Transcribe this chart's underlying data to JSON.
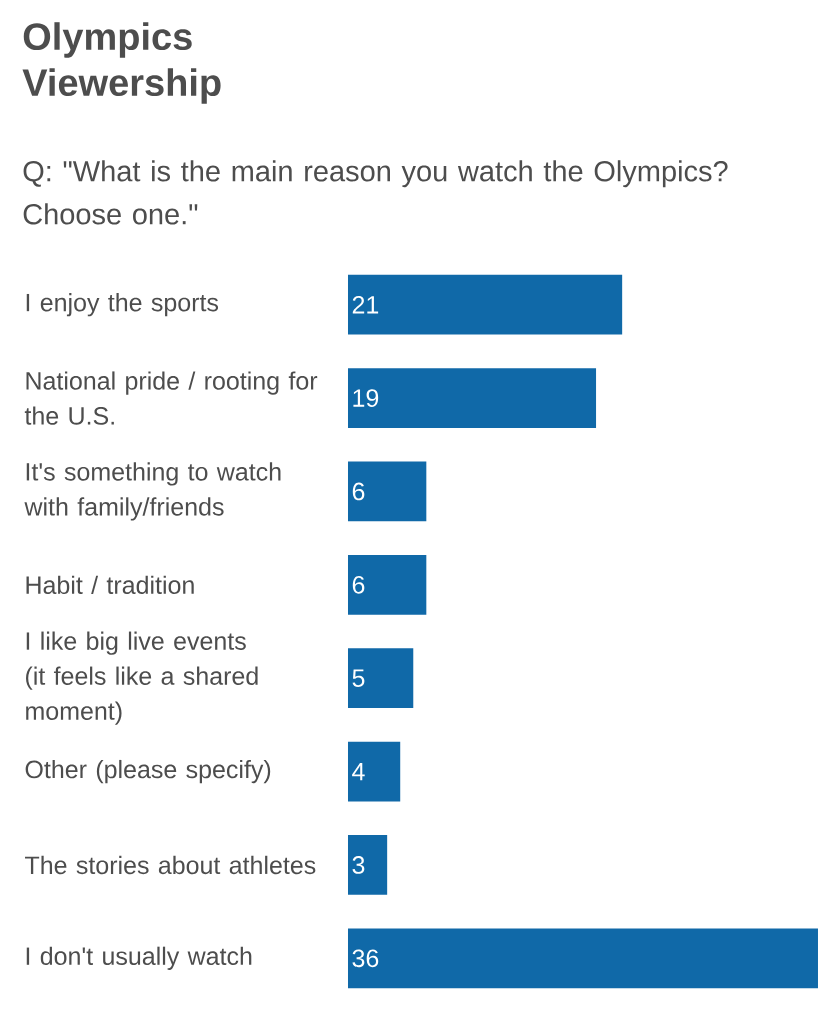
{
  "chart_data": {
    "type": "bar",
    "orientation": "horizontal",
    "title": "Olympics Viewership",
    "subtitle": "Q: \"What is the main reason you watch the Olympics? Choose one.\"",
    "categories": [
      "I enjoy the sports",
      "National pride / rooting for the U.S.",
      "It's something to watch with family/friends",
      "Habit / tradition",
      "I like big live events (it feels like a shared moment)",
      "Other (please specify)",
      "The stories about athletes",
      "I don't usually watch"
    ],
    "values": [
      21,
      19,
      6,
      6,
      5,
      4,
      3,
      36
    ],
    "value_labels": [
      "21",
      "19",
      "6",
      "6",
      "5",
      "4",
      "3",
      "36"
    ],
    "color": "#1069a8",
    "xlim": [
      0,
      36
    ],
    "tick_labels": "y"
  }
}
